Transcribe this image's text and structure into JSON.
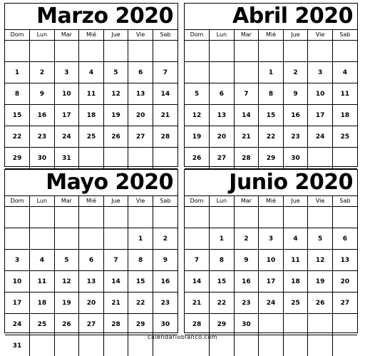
{
  "weekdays": [
    "Dom",
    "Lun",
    "Mar",
    "Mié",
    "Jue",
    "Vie",
    "Sab"
  ],
  "months": [
    {
      "title": "Marzo 2020",
      "weeks": [
        [
          "",
          "",
          "",
          "",
          "",
          "",
          ""
        ],
        [
          "1",
          "2",
          "3",
          "4",
          "5",
          "6",
          "7"
        ],
        [
          "8",
          "9",
          "10",
          "11",
          "12",
          "13",
          "14"
        ],
        [
          "15",
          "16",
          "17",
          "18",
          "19",
          "20",
          "21"
        ],
        [
          "22",
          "23",
          "24",
          "25",
          "26",
          "27",
          "28"
        ],
        [
          "29",
          "30",
          "31",
          "",
          "",
          "",
          ""
        ],
        [
          "",
          "",
          "",
          "",
          "",
          "",
          ""
        ]
      ]
    },
    {
      "title": "Abril 2020",
      "weeks": [
        [
          "",
          "",
          "",
          "",
          "",
          "",
          ""
        ],
        [
          "",
          "",
          "",
          "1",
          "2",
          "3",
          "4"
        ],
        [
          "5",
          "6",
          "7",
          "8",
          "9",
          "10",
          "11"
        ],
        [
          "12",
          "13",
          "14",
          "15",
          "16",
          "17",
          "18"
        ],
        [
          "19",
          "20",
          "21",
          "22",
          "23",
          "24",
          "25"
        ],
        [
          "26",
          "27",
          "28",
          "29",
          "30",
          "",
          ""
        ],
        [
          "",
          "",
          "",
          "",
          "",
          "",
          ""
        ]
      ]
    },
    {
      "title": "Mayo 2020",
      "weeks": [
        [
          "",
          "",
          "",
          "",
          "",
          "",
          ""
        ],
        [
          "",
          "",
          "",
          "",
          "",
          "1",
          "2"
        ],
        [
          "3",
          "4",
          "5",
          "6",
          "7",
          "8",
          "9"
        ],
        [
          "10",
          "11",
          "12",
          "13",
          "14",
          "15",
          "16"
        ],
        [
          "17",
          "18",
          "19",
          "20",
          "21",
          "22",
          "23"
        ],
        [
          "24",
          "25",
          "26",
          "27",
          "28",
          "29",
          "30"
        ],
        [
          "31",
          "",
          "",
          "",
          "",
          "",
          ""
        ]
      ]
    },
    {
      "title": "Junio 2020",
      "weeks": [
        [
          "",
          "",
          "",
          "",
          "",
          "",
          ""
        ],
        [
          "",
          "1",
          "2",
          "3",
          "4",
          "5",
          "6"
        ],
        [
          "7",
          "8",
          "9",
          "10",
          "11",
          "12",
          "13"
        ],
        [
          "14",
          "15",
          "16",
          "17",
          "18",
          "19",
          "20"
        ],
        [
          "21",
          "22",
          "23",
          "24",
          "25",
          "26",
          "27"
        ],
        [
          "28",
          "29",
          "30",
          "",
          "",
          "",
          ""
        ],
        [
          "",
          "",
          "",
          "",
          "",
          "",
          ""
        ]
      ]
    }
  ],
  "footer": "calendarioblanco.com"
}
